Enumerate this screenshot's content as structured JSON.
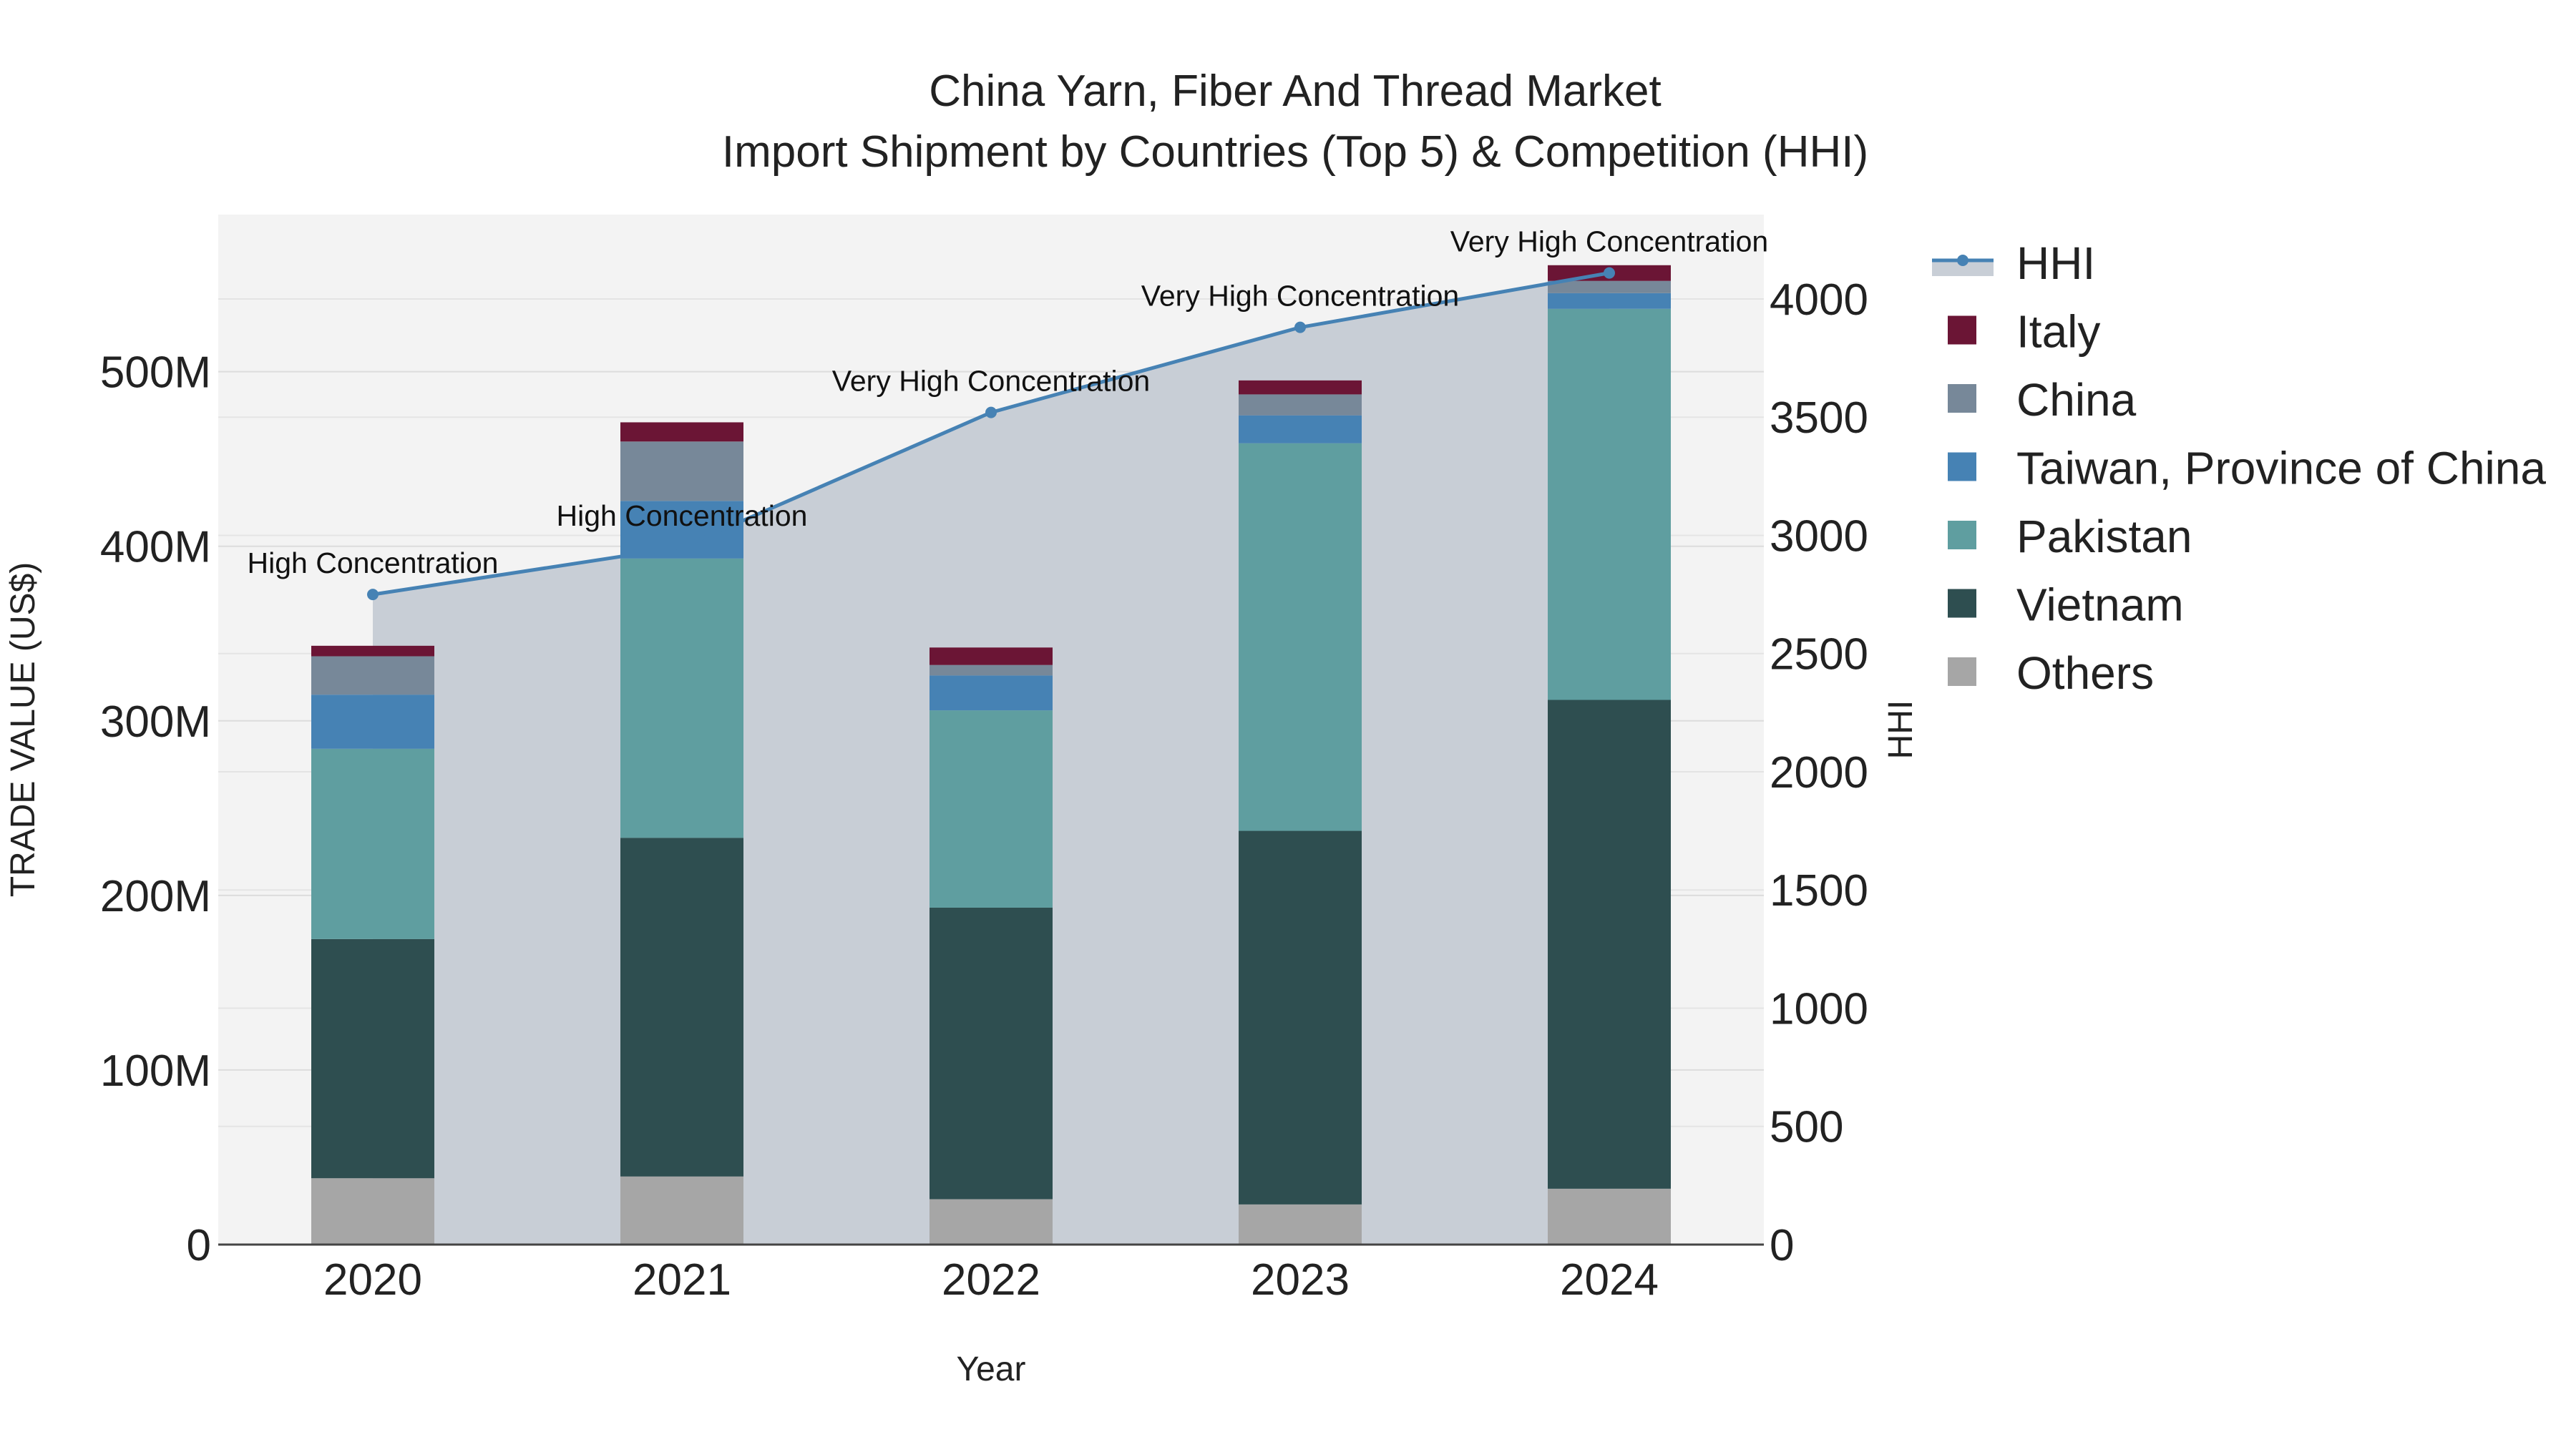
{
  "chart_data": {
    "type": "bar",
    "stacked": true,
    "title": "China Yarn, Fiber And Thread Market",
    "subtitle": "Import Shipment by Countries (Top 5) & Competition (HHI)",
    "xlabel": "Year",
    "ylabel": "TRADE VALUE (US$)",
    "y2label": "HHI",
    "categories": [
      "2020",
      "2021",
      "2022",
      "2023",
      "2024"
    ],
    "ylim": [
      0,
      590000000
    ],
    "y2lim": [
      0,
      4357
    ],
    "y_ticks": [
      {
        "value": 0,
        "label": "0"
      },
      {
        "value": 100000000,
        "label": "100M"
      },
      {
        "value": 200000000,
        "label": "200M"
      },
      {
        "value": 300000000,
        "label": "300M"
      },
      {
        "value": 400000000,
        "label": "400M"
      },
      {
        "value": 500000000,
        "label": "500M"
      }
    ],
    "y2_ticks": [
      {
        "value": 0,
        "label": "0"
      },
      {
        "value": 500,
        "label": "500"
      },
      {
        "value": 1000,
        "label": "1000"
      },
      {
        "value": 1500,
        "label": "1500"
      },
      {
        "value": 2000,
        "label": "2000"
      },
      {
        "value": 2500,
        "label": "2500"
      },
      {
        "value": 3000,
        "label": "3000"
      },
      {
        "value": 3500,
        "label": "3500"
      },
      {
        "value": 4000,
        "label": "4000"
      }
    ],
    "series": [
      {
        "name": "Others",
        "color": "#a6a6a6",
        "values": [
          38000000,
          39000000,
          26000000,
          23000000,
          32000000
        ]
      },
      {
        "name": "Vietnam",
        "color": "#2e4e50",
        "values": [
          137000000,
          194000000,
          167000000,
          214000000,
          280000000
        ]
      },
      {
        "name": "Pakistan",
        "color": "#5f9ea0",
        "values": [
          109000000,
          160000000,
          113000000,
          222000000,
          224000000
        ]
      },
      {
        "name": "Taiwan, Province of China",
        "color": "#4682b4",
        "values": [
          31000000,
          33000000,
          20000000,
          16000000,
          9000000
        ]
      },
      {
        "name": "China",
        "color": "#778899",
        "values": [
          22000000,
          34000000,
          6000000,
          12000000,
          7000000
        ]
      },
      {
        "name": "Italy",
        "color": "#6b1535",
        "values": [
          6000000,
          11000000,
          10000000,
          8000000,
          9000000
        ]
      }
    ],
    "hhi": {
      "name": "HHI",
      "color": "#4682b4",
      "values": [
        2750,
        2950,
        3520,
        3880,
        4110
      ],
      "labels": [
        "High Concentration",
        "High Concentration",
        "Very High Concentration",
        "Very High Concentration",
        "Very High Concentration"
      ]
    },
    "legend": [
      "HHI",
      "Italy",
      "China",
      "Taiwan, Province of China",
      "Pakistan",
      "Vietnam",
      "Others"
    ],
    "legend_position": "right"
  }
}
